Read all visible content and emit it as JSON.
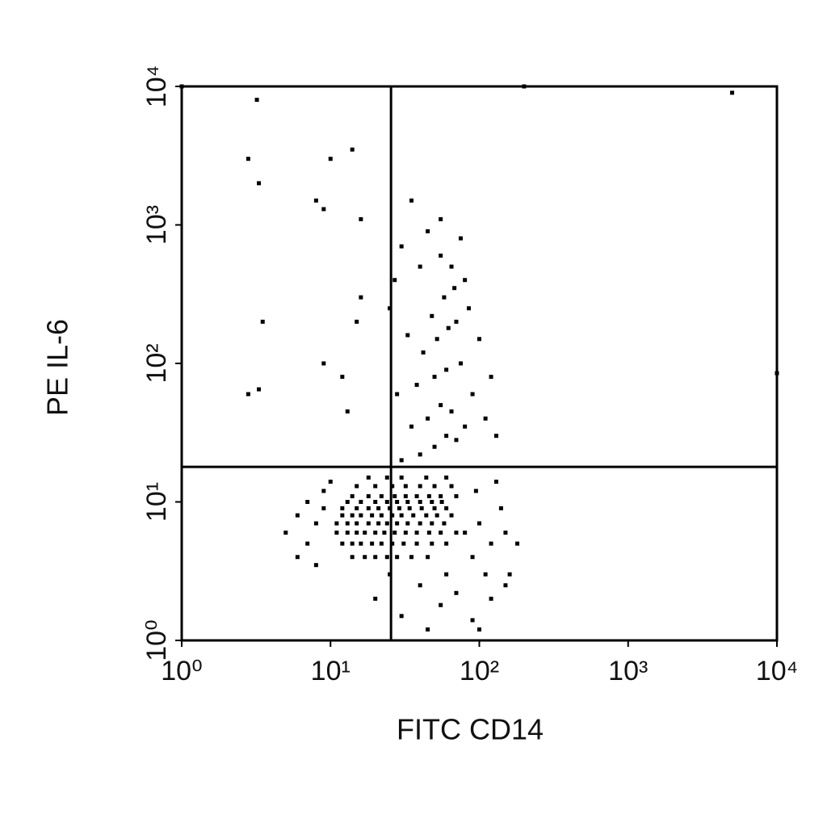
{
  "chart_data": {
    "type": "scatter",
    "xlabel": "FITC CD14",
    "ylabel": "PE IL-6",
    "log_x": true,
    "log_y": true,
    "color": "#000000",
    "xlim": [
      1,
      10000
    ],
    "ylim": [
      1,
      10000
    ],
    "xticks": [
      {
        "value": 1,
        "label": "10⁰"
      },
      {
        "value": 10,
        "label": "10¹"
      },
      {
        "value": 100,
        "label": "10²"
      },
      {
        "value": 1000,
        "label": "10³"
      },
      {
        "value": 10000,
        "label": "10⁴"
      }
    ],
    "yticks": [
      {
        "value": 1,
        "label": "10⁰"
      },
      {
        "value": 10,
        "label": "10¹"
      },
      {
        "value": 100,
        "label": "10²"
      },
      {
        "value": 1000,
        "label": "10³"
      },
      {
        "value": 10000,
        "label": "10⁴"
      }
    ],
    "gates": {
      "x": 25.5,
      "y": 17.9
    },
    "x": [
      14,
      17,
      20,
      24,
      28,
      35,
      45,
      12,
      14,
      16,
      19,
      22,
      26,
      31,
      38,
      48,
      60,
      11,
      13,
      15,
      17,
      20,
      23,
      27,
      32,
      38,
      46,
      55,
      70,
      11,
      13,
      15,
      18,
      21,
      24,
      28,
      33,
      40,
      48,
      58,
      12,
      14,
      16,
      19,
      22,
      26,
      30,
      36,
      44,
      52,
      65,
      12,
      15,
      18,
      21,
      25,
      29,
      34,
      41,
      50,
      60,
      13,
      16,
      20,
      24,
      28,
      33,
      40,
      48,
      56,
      14,
      18,
      22,
      27,
      32,
      38,
      46,
      55,
      70,
      15,
      20,
      26,
      32,
      40,
      50,
      65,
      18,
      24,
      30,
      44,
      60,
      5,
      6,
      7,
      8,
      9,
      6,
      8,
      9,
      10,
      7,
      80,
      90,
      100,
      120,
      150,
      110,
      140,
      180,
      95,
      130,
      160,
      20,
      30,
      40,
      55,
      70,
      90,
      120,
      150,
      45,
      25,
      60,
      100,
      30,
      40,
      50,
      60,
      70,
      35,
      45,
      55,
      65,
      80,
      28,
      38,
      50,
      60,
      75,
      90,
      42,
      52,
      62,
      70,
      85,
      100,
      33,
      48,
      58,
      68,
      80,
      40,
      55,
      65,
      30,
      45,
      55,
      75,
      120,
      110,
      130,
      25,
      27,
      35,
      3.2,
      2.8,
      3.3,
      10,
      14,
      9,
      8,
      3.5,
      2.8,
      3.3,
      9,
      12,
      13,
      1,
      5000,
      10000,
      200,
      16,
      16,
      15
    ],
    "y": [
      4,
      4,
      4,
      4,
      4,
      4,
      4,
      5,
      5,
      5,
      5,
      5,
      5,
      5,
      5,
      5,
      5,
      6,
      6,
      6,
      6,
      6,
      6,
      6,
      6,
      6,
      6,
      6,
      6,
      7,
      7,
      7,
      7,
      7,
      7,
      7,
      7,
      7,
      7,
      7,
      8,
      8,
      8,
      8,
      8,
      8,
      8,
      8,
      8,
      8,
      8,
      9,
      9,
      9,
      9,
      9,
      9,
      9,
      9,
      9,
      9,
      10,
      10,
      10,
      10,
      10,
      10,
      10,
      10,
      10,
      11,
      11,
      11,
      11,
      11,
      11,
      11,
      11,
      11,
      13,
      13,
      13,
      13,
      13,
      13,
      13,
      15,
      15,
      15,
      15,
      15,
      6,
      8,
      5,
      7,
      9,
      4,
      3.5,
      12,
      14,
      10,
      6,
      4,
      7,
      5,
      6,
      3,
      9,
      5,
      12,
      14,
      3,
      2,
      1.5,
      2.5,
      1.8,
      2.2,
      1.4,
      2,
      2.5,
      1.2,
      3,
      3,
      1.2,
      20,
      22,
      25,
      30,
      28,
      35,
      40,
      50,
      45,
      35,
      60,
      70,
      80,
      90,
      100,
      60,
      120,
      150,
      180,
      200,
      250,
      150,
      160,
      220,
      300,
      350,
      400,
      500,
      600,
      500,
      700,
      900,
      1100,
      800,
      80,
      40,
      30,
      250,
      400,
      1500,
      8000,
      3000,
      2000,
      3000,
      3500,
      1300,
      1500,
      200,
      60,
      65,
      100,
      80,
      45,
      10000,
      9000,
      85,
      10000,
      1100,
      300,
      200
    ]
  }
}
